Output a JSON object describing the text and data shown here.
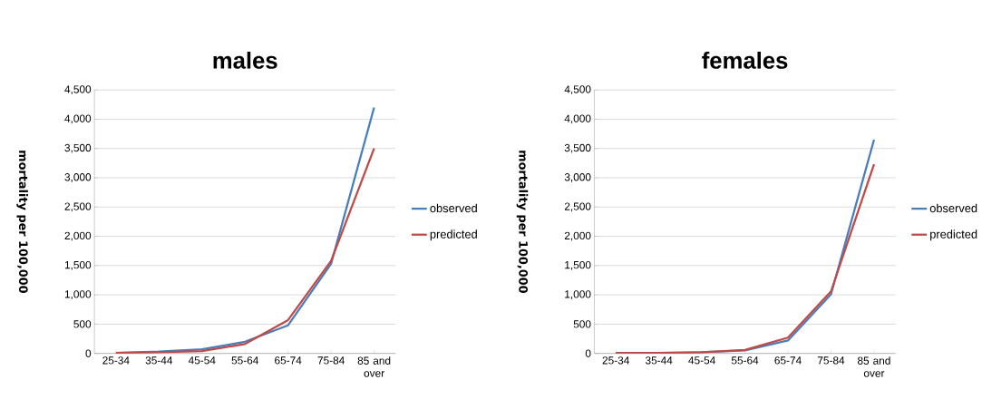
{
  "chart_data": [
    {
      "type": "line",
      "title": "males",
      "ylabel": "mortality per 100,000",
      "categories": [
        "25-34",
        "35-44",
        "45-54",
        "55-64",
        "65-74",
        "75-84",
        "85 and over"
      ],
      "series": [
        {
          "name": "observed",
          "color": "#4a7ebb",
          "values": [
            10,
            30,
            70,
            200,
            480,
            1530,
            4200
          ]
        },
        {
          "name": "predicted",
          "color": "#be4b48",
          "values": [
            10,
            20,
            40,
            160,
            570,
            1580,
            3500
          ]
        }
      ],
      "ylim": [
        0,
        4500
      ],
      "yticks": [
        0,
        500,
        {
          "value": 1000,
          "label": "1,000"
        },
        {
          "value": 1500,
          "label": "1,500"
        },
        {
          "value": 2000,
          "label": "2,000"
        },
        {
          "value": 2500,
          "label": "2,500"
        },
        {
          "value": 3000,
          "label": "3,000"
        },
        {
          "value": 3500,
          "label": "3,500"
        },
        {
          "value": 4000,
          "label": "4,000"
        },
        {
          "value": 4500,
          "label": "4,500"
        }
      ],
      "grid": "y",
      "legend": "right",
      "line_style": "solid"
    },
    {
      "type": "line",
      "title": "females",
      "ylabel": "mortality per 100,000",
      "categories": [
        "25-34",
        "35-44",
        "45-54",
        "55-64",
        "65-74",
        "75-84",
        "85 and over"
      ],
      "series": [
        {
          "name": "observed",
          "color": "#4a7ebb",
          "values": [
            10,
            10,
            20,
            50,
            220,
            1010,
            3650
          ]
        },
        {
          "name": "predicted",
          "color": "#be4b48",
          "values": [
            10,
            10,
            20,
            60,
            270,
            1060,
            3230
          ]
        }
      ],
      "ylim": [
        0,
        4500
      ],
      "yticks": [
        0,
        500,
        {
          "value": 1000,
          "label": "1,000"
        },
        {
          "value": 1500,
          "label": "1,500"
        },
        {
          "value": 2000,
          "label": "2,000"
        },
        {
          "value": 2500,
          "label": "2,500"
        },
        {
          "value": 3000,
          "label": "3,000"
        },
        {
          "value": 3500,
          "label": "3,500"
        },
        {
          "value": 4000,
          "label": "4,000"
        },
        {
          "value": 4500,
          "label": "4,500"
        }
      ],
      "grid": "y",
      "legend": "right",
      "line_style": "solid"
    }
  ]
}
